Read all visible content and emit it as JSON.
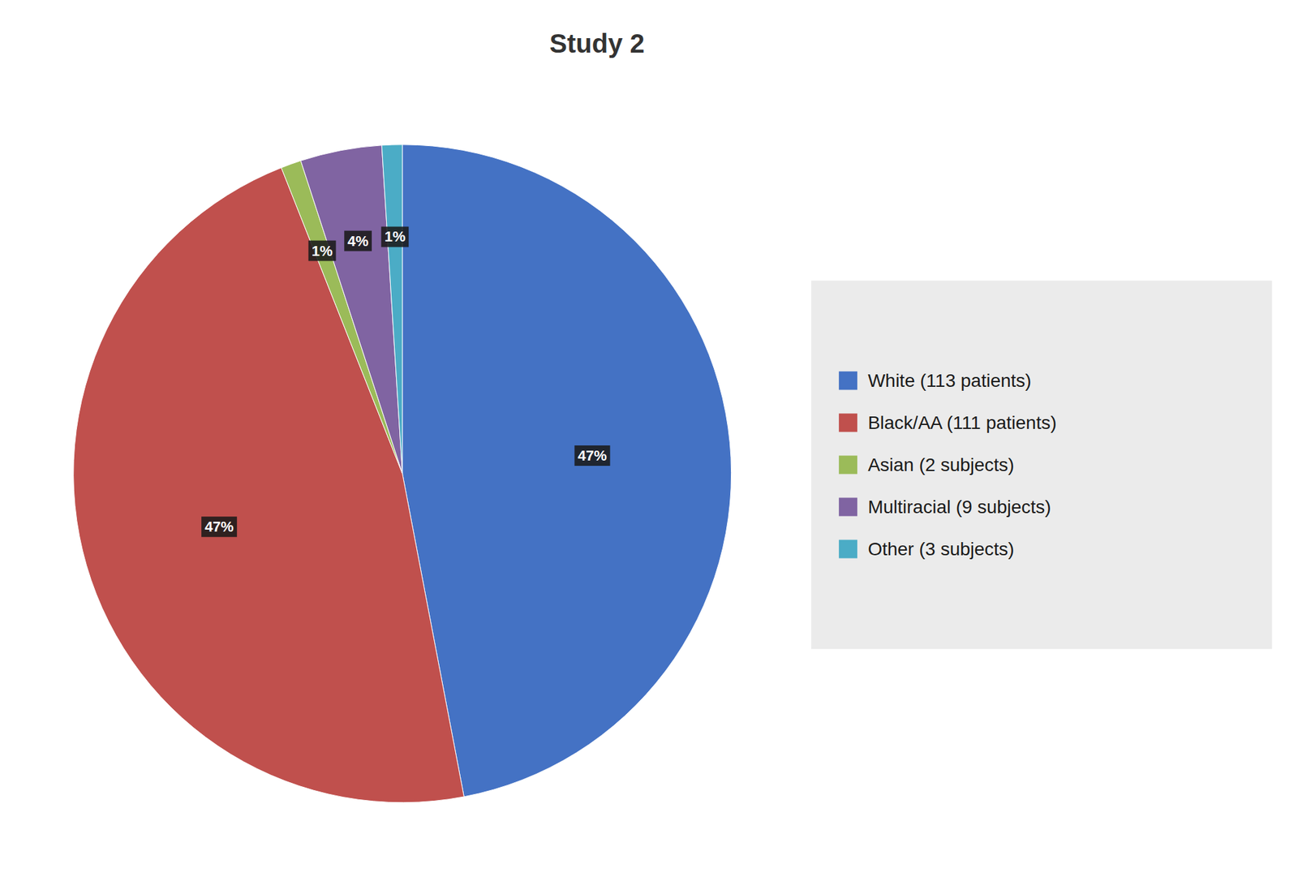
{
  "chart_data": {
    "type": "pie",
    "title": "Study 2",
    "categories": [
      "White (113 patients)",
      "Black/AA (111 patients)",
      "Asian (2 subjects)",
      "Multiracial (9 subjects)",
      "Other (3 subjects)"
    ],
    "values": [
      47,
      47,
      1,
      4,
      1
    ],
    "value_labels": [
      "47%",
      "47%",
      "1%",
      "4%",
      "1%"
    ],
    "colors": [
      "#4472C4",
      "#C0504D",
      "#9BBB59",
      "#8064A2",
      "#4BACC6"
    ],
    "data_labels": true,
    "legend": "right"
  }
}
